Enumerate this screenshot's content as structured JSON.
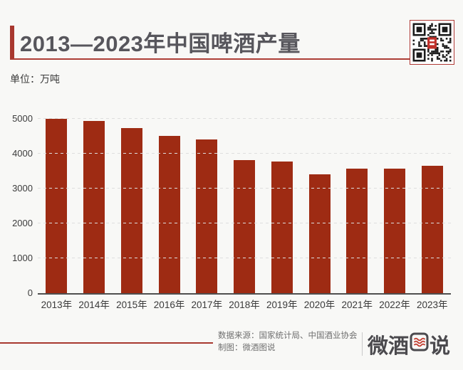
{
  "header": {
    "title": "2013—2023年中国啤酒产量"
  },
  "unit_label": "单位：万吨",
  "chart_data": {
    "type": "bar",
    "title": "2013—2023年中国啤酒产量",
    "unit": "万吨",
    "categories": [
      "2013年",
      "2014年",
      "2015年",
      "2016年",
      "2017年",
      "2018年",
      "2019年",
      "2020年",
      "2021年",
      "2022年",
      "2023年"
    ],
    "values": [
      4983,
      4921.9,
      4715.7,
      4506.4,
      4401.5,
      3812.2,
      3765.3,
      3411.1,
      3562.4,
      3568.7,
      3637.6
    ],
    "yticks": [
      0,
      1000,
      2000,
      3000,
      4000,
      5000
    ],
    "ylim": [
      0,
      5230
    ],
    "xlabel": "",
    "ylabel": "",
    "grid": "horizontal-dashed",
    "legend": "none",
    "bar_color": "#9e2b13"
  },
  "footer": {
    "source_label": "数据来源：国家统计局、中国酒业协会",
    "credit_label": "制图：微酒图说",
    "logo": {
      "text": "微酒图说",
      "prefix": "微酒",
      "suffix": "说"
    }
  },
  "colors": {
    "background": "#f8f8f6",
    "accent_red": "#ad3e36",
    "bar_red": "#9e2b13",
    "title_text": "#57565c",
    "body_text": "#3b3b3b",
    "footer_text": "#6f6f6f",
    "logo_text": "#4b4a4e"
  }
}
